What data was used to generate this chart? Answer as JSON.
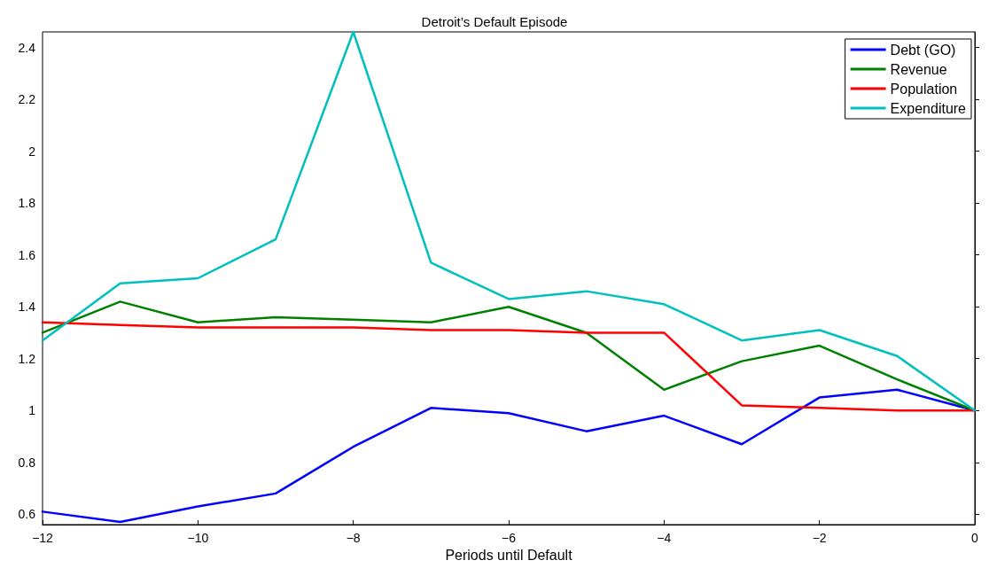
{
  "chart_data": {
    "type": "line",
    "title": "Detroit’s Default Episode",
    "xlabel": "Periods until Default",
    "x": [
      -12,
      -11,
      -10,
      -9,
      -8,
      -7,
      -6,
      -5,
      -4,
      -3,
      -2,
      -1,
      0
    ],
    "series": [
      {
        "name": "Debt (GO)",
        "color": "#0000ff",
        "values": [
          0.61,
          0.57,
          0.63,
          0.68,
          0.86,
          1.01,
          0.99,
          0.92,
          0.98,
          0.87,
          1.05,
          1.08,
          1.0
        ]
      },
      {
        "name": "Revenue",
        "color": "#008000",
        "values": [
          1.3,
          1.42,
          1.34,
          1.36,
          1.35,
          1.34,
          1.4,
          1.3,
          1.08,
          1.19,
          1.25,
          1.12,
          1.0
        ]
      },
      {
        "name": "Population",
        "color": "#ff0000",
        "values": [
          1.34,
          1.33,
          1.32,
          1.32,
          1.32,
          1.31,
          1.31,
          1.3,
          1.3,
          1.02,
          1.01,
          1.0,
          1.0
        ]
      },
      {
        "name": "Expenditure",
        "color": "#00bfbf",
        "values": [
          1.27,
          1.49,
          1.51,
          1.66,
          2.46,
          1.57,
          1.43,
          1.46,
          1.41,
          1.27,
          1.31,
          1.21,
          1.0
        ]
      }
    ],
    "xlim": [
      -12,
      0
    ],
    "xticks": [
      {
        "value": -12,
        "label": "−12"
      },
      {
        "value": -10,
        "label": "−10"
      },
      {
        "value": -8,
        "label": "−8"
      },
      {
        "value": -6,
        "label": "−6"
      },
      {
        "value": -4,
        "label": "−4"
      },
      {
        "value": -2,
        "label": "−2"
      },
      0
    ],
    "ylim": [
      0.56,
      2.46
    ],
    "yticks": [
      0.6,
      0.8,
      1,
      1.2,
      1.4,
      1.6,
      1.8,
      2,
      2.2,
      2.4
    ],
    "grid": false,
    "legend": "top right",
    "marker": "none",
    "line_style": "solid"
  }
}
